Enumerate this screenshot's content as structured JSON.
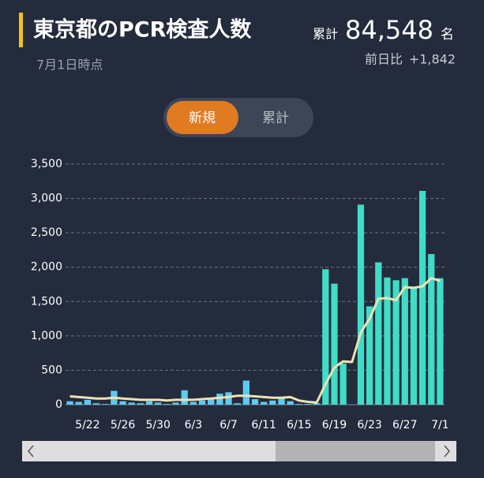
{
  "header": {
    "title": "東京都のPCR検査人数",
    "date": "7月1日時点",
    "total_label": "累計",
    "total": "84,548",
    "unit": "名",
    "diff_label": "前日比",
    "diff": "+1,842"
  },
  "toggle": {
    "options": [
      "新規",
      "累計"
    ],
    "active": 0
  },
  "chart_data": {
    "type": "bar",
    "categories": [
      null,
      null,
      "5/22",
      null,
      null,
      null,
      "5/26",
      null,
      null,
      null,
      "5/30",
      null,
      null,
      null,
      "6/3",
      null,
      null,
      null,
      "6/7",
      null,
      null,
      null,
      "6/11",
      null,
      null,
      null,
      "6/15",
      null,
      null,
      null,
      "6/19",
      null,
      null,
      null,
      "6/23",
      null,
      null,
      null,
      "6/27",
      null,
      null,
      null,
      "7/1"
    ],
    "series": [
      {
        "type": "bar",
        "colors": [
          "#5ccbf2",
          "#5ccbf2",
          "#5ccbf2",
          "#5ccbf2",
          "#5ccbf2",
          "#5ccbf2",
          "#5ccbf2",
          "#5ccbf2",
          "#5ccbf2",
          "#5ccbf2",
          "#5ccbf2",
          "#5ccbf2",
          "#5ccbf2",
          "#5ccbf2",
          "#5ccbf2",
          "#5ccbf2",
          "#5ccbf2",
          "#5ccbf2",
          "#5ccbf2",
          "#5ccbf2",
          "#5ccbf2",
          "#5ccbf2",
          "#5ccbf2",
          "#5ccbf2",
          "#5ccbf2",
          "#5ccbf2",
          "#5ccbf2",
          "#5ccbf2",
          "#5ccbf2",
          "#3fdcc6",
          "#3fdcc6",
          "#3fdcc6",
          "#3fdcc6",
          "#3fdcc6",
          "#3fdcc6",
          "#3fdcc6",
          "#3fdcc6",
          "#3fdcc6",
          "#3fdcc6",
          "#3fdcc6",
          "#3fdcc6",
          "#3fdcc6",
          "#3fdcc6"
        ],
        "values": [
          50,
          40,
          70,
          20,
          10,
          200,
          50,
          30,
          20,
          50,
          30,
          10,
          30,
          210,
          40,
          60,
          80,
          160,
          180,
          20,
          350,
          80,
          40,
          60,
          100,
          50,
          10,
          10,
          20,
          1970,
          1760,
          600,
          0,
          2910,
          1430,
          2070,
          1850,
          1810,
          1840,
          1710,
          3110,
          2190,
          1840
        ]
      },
      {
        "type": "line",
        "color": "#efe2b4",
        "values": [
          120,
          110,
          100,
          90,
          90,
          100,
          90,
          80,
          70,
          70,
          70,
          60,
          70,
          70,
          70,
          80,
          90,
          100,
          110,
          130,
          130,
          120,
          110,
          100,
          100,
          110,
          60,
          40,
          30,
          300,
          540,
          630,
          620,
          1050,
          1250,
          1540,
          1550,
          1520,
          1710,
          1700,
          1720,
          1840,
          1800
        ]
      }
    ],
    "ylim": [
      0,
      3500
    ],
    "yticks": [
      0,
      500,
      {
        "value": 1000,
        "label": "1,000"
      },
      {
        "value": 1500,
        "label": "1,500"
      },
      {
        "value": 2000,
        "label": "2,000"
      },
      {
        "value": 2500,
        "label": "2,500"
      },
      {
        "value": 3000,
        "label": "3,000"
      },
      {
        "value": 3500,
        "label": "3,500"
      }
    ],
    "grid": true
  }
}
